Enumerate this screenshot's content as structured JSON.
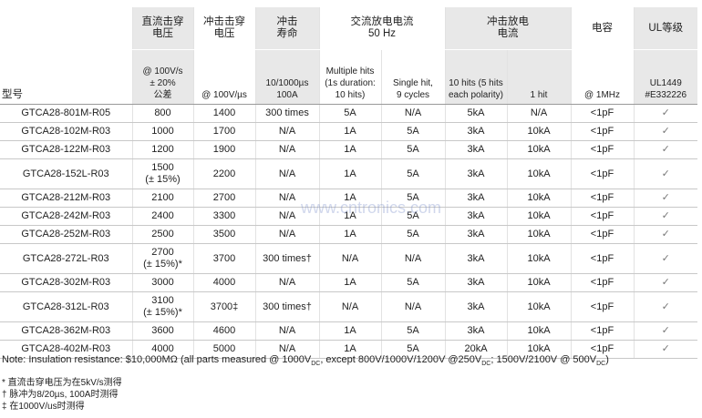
{
  "header": {
    "model_label": "型号",
    "groups": [
      "直流击穿\n电压",
      "冲击击穿\n电压",
      "冲击\n寿命",
      "交流放电电流\n50 Hz",
      "冲击放电\n电流",
      "电容",
      "UL等级"
    ],
    "subs": [
      "@ 100V/s\n± 20%\n公差",
      "@ 100V/µs",
      "10/1000µs\n100A",
      "Multiple hits\n(1s duration:\n10 hits)",
      "Single hit,\n9 cycles",
      "10 hits (5 hits\neach polarity)",
      "1 hit",
      "@ 1MHz",
      "UL1449\n#E332226"
    ]
  },
  "table": {
    "rows": [
      [
        "GTCA28-801M-R05",
        "800",
        "1400",
        "300 times",
        "5A",
        "N/A",
        "5kA",
        "N/A",
        "<1pF",
        "✓"
      ],
      [
        "GTCA28-102M-R03",
        "1000",
        "1700",
        "N/A",
        "1A",
        "5A",
        "3kA",
        "10kA",
        "<1pF",
        "✓"
      ],
      [
        "GTCA28-122M-R03",
        "1200",
        "1900",
        "N/A",
        "1A",
        "5A",
        "3kA",
        "10kA",
        "<1pF",
        "✓"
      ],
      [
        "GTCA28-152L-R03",
        "1500\n(± 15%)",
        "2200",
        "N/A",
        "1A",
        "5A",
        "3kA",
        "10kA",
        "<1pF",
        "✓"
      ],
      [
        "GTCA28-212M-R03",
        "2100",
        "2700",
        "N/A",
        "1A",
        "5A",
        "3kA",
        "10kA",
        "<1pF",
        "✓"
      ],
      [
        "GTCA28-242M-R03",
        "2400",
        "3300",
        "N/A",
        "1A",
        "5A",
        "3kA",
        "10kA",
        "<1pF",
        "✓"
      ],
      [
        "GTCA28-252M-R03",
        "2500",
        "3500",
        "N/A",
        "1A",
        "5A",
        "3kA",
        "10kA",
        "<1pF",
        "✓"
      ],
      [
        "GTCA28-272L-R03",
        "2700\n(± 15%)*",
        "3700",
        "300 times†",
        "N/A",
        "N/A",
        "3kA",
        "10kA",
        "<1pF",
        "✓"
      ],
      [
        "GTCA28-302M-R03",
        "3000",
        "4000",
        "N/A",
        "1A",
        "5A",
        "3kA",
        "10kA",
        "<1pF",
        "✓"
      ],
      [
        "GTCA28-312L-R03",
        "3100\n(± 15%)*",
        "3700‡",
        "300 times†",
        "N/A",
        "N/A",
        "3kA",
        "10kA",
        "<1pF",
        "✓"
      ],
      [
        "GTCA28-362M-R03",
        "3600",
        "4600",
        "N/A",
        "1A",
        "5A",
        "3kA",
        "10kA",
        "<1pF",
        "✓"
      ],
      [
        "GTCA28-402M-R03",
        "4000",
        "5000",
        "N/A",
        "1A",
        "5A",
        "20kA",
        "10kA",
        "<1pF",
        "✓"
      ]
    ]
  },
  "note": [
    "Note: Insulation resistance: $10,000MΩ (all parts measured @ 1000V",
    "DC",
    ", except 800V/1000V/1200V @250V",
    "DC",
    "; 1500V/2100V @ 500V",
    "DC",
    ")"
  ],
  "footnotes": [
    "* 直流击穿电压为在5kV/s测得",
    "† 脉冲为8/20µs, 100A时测得",
    "‡ 在1000V/us时测得"
  ],
  "watermark": "www.cntronics.com"
}
